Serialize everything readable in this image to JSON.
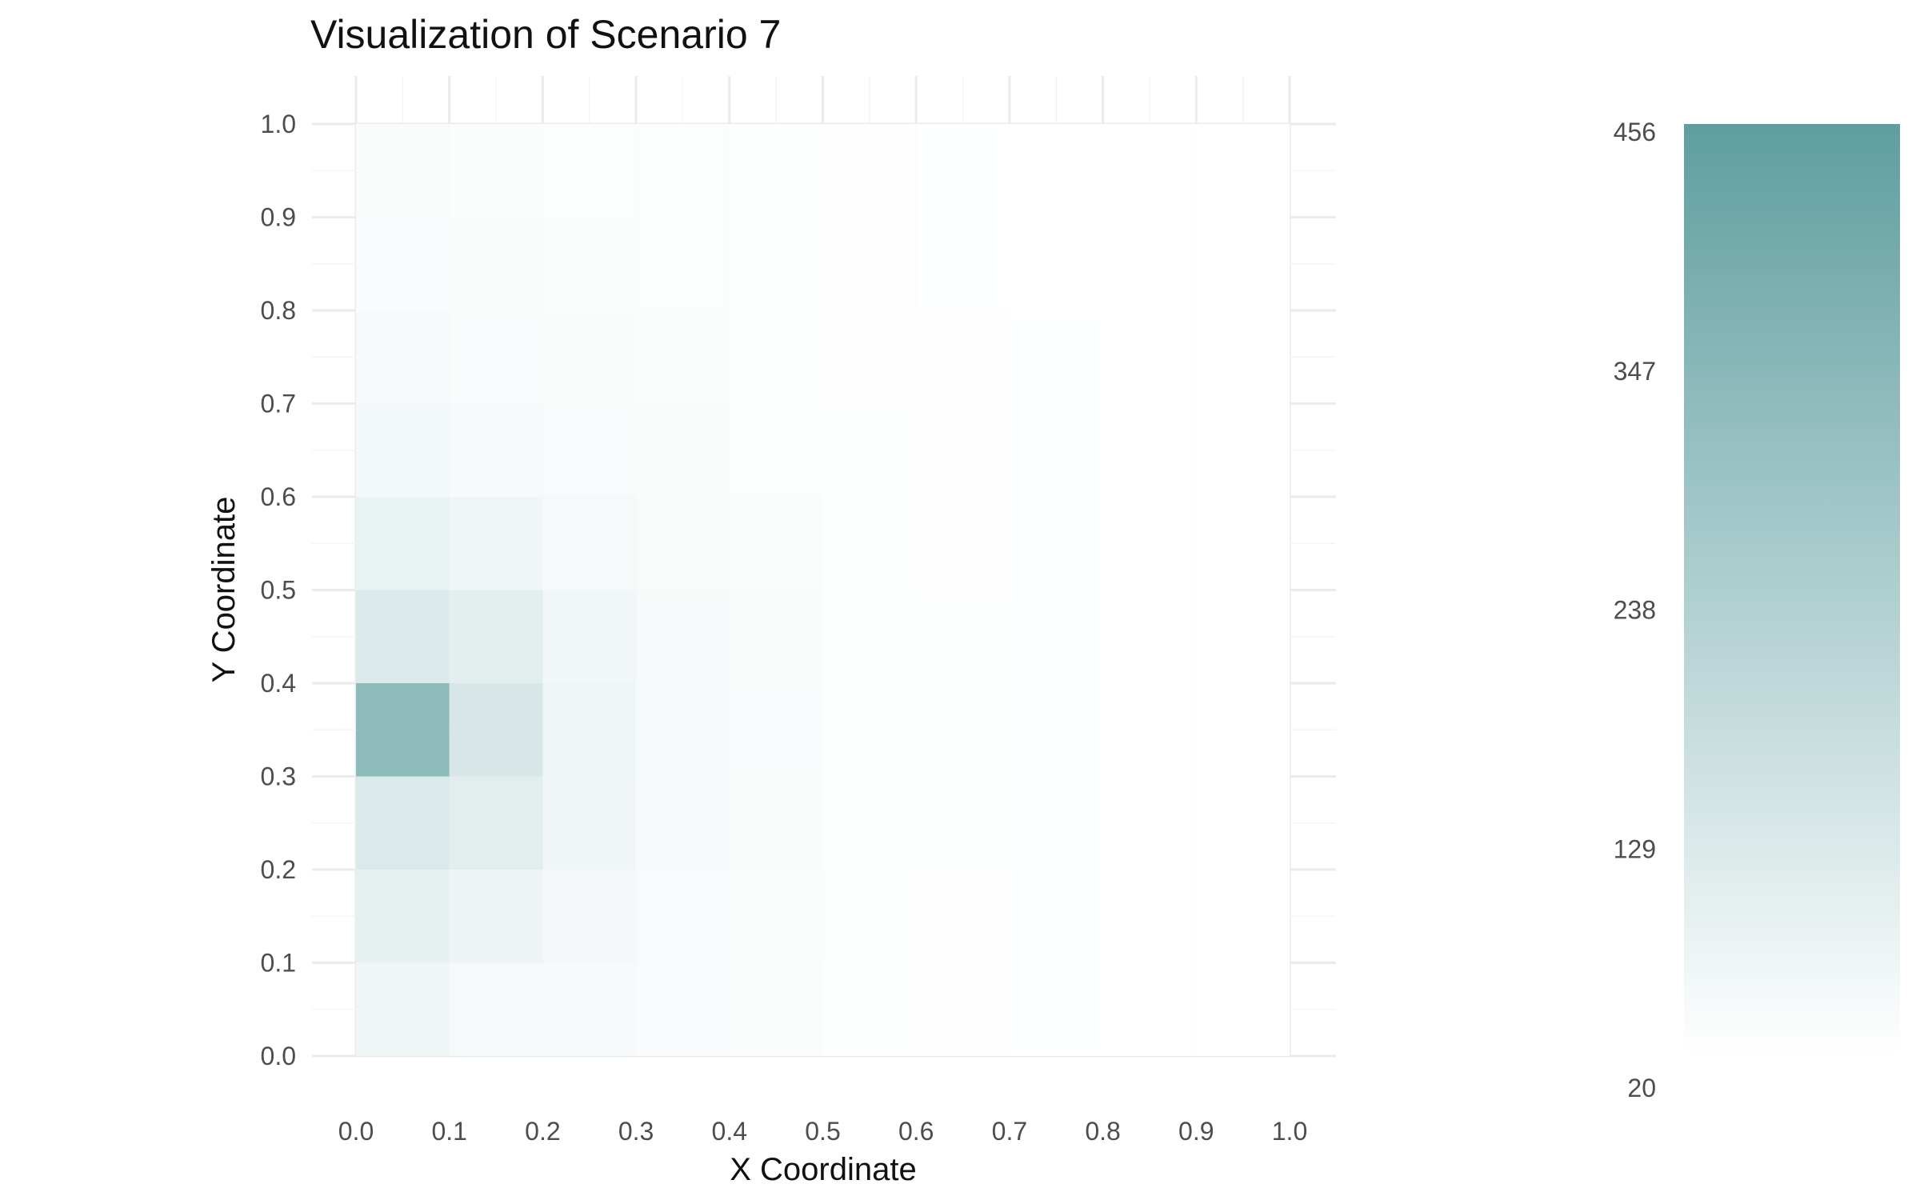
{
  "chart_data": {
    "type": "heatmap",
    "title": "Visualization of Scenario 7",
    "xlabel": "X Coordinate",
    "ylabel": "Y Coordinate",
    "xlim": [
      0,
      1
    ],
    "ylim": [
      0,
      1
    ],
    "x_ticks": [
      "0.0",
      "0.1",
      "0.2",
      "0.3",
      "0.4",
      "0.5",
      "0.6",
      "0.7",
      "0.8",
      "0.9",
      "1.0"
    ],
    "y_ticks": [
      "0.0",
      "0.1",
      "0.2",
      "0.3",
      "0.4",
      "0.5",
      "0.6",
      "0.7",
      "0.8",
      "0.9",
      "1.0"
    ],
    "bin_width": 0.1,
    "x_bins": [
      0.0,
      0.1,
      0.2,
      0.3,
      0.4,
      0.5,
      0.6,
      0.7,
      0.8,
      0.9
    ],
    "y_bins": [
      0.0,
      0.1,
      0.2,
      0.3,
      0.4,
      0.5,
      0.6,
      0.7,
      0.8,
      0.9
    ],
    "values": [
      [
        62,
        48,
        42,
        36,
        30,
        26,
        24,
        22,
        21,
        20
      ],
      [
        88,
        70,
        50,
        38,
        31,
        27,
        24,
        22,
        21,
        20
      ],
      [
        120,
        98,
        60,
        42,
        33,
        28,
        25,
        22,
        21,
        20
      ],
      [
        330,
        128,
        66,
        44,
        35,
        28,
        25,
        22,
        21,
        20
      ],
      [
        118,
        96,
        58,
        42,
        33,
        28,
        25,
        22,
        21,
        20
      ],
      [
        76,
        62,
        46,
        37,
        31,
        26,
        24,
        22,
        21,
        20
      ],
      [
        52,
        44,
        38,
        33,
        28,
        25,
        23,
        22,
        21,
        20
      ],
      [
        42,
        38,
        34,
        30,
        27,
        24,
        23,
        22,
        21,
        20
      ],
      [
        36,
        33,
        30,
        28,
        26,
        24,
        22,
        21,
        20,
        20
      ],
      [
        34,
        32,
        29,
        27,
        25,
        23,
        22,
        21,
        20,
        20
      ]
    ],
    "colorbar": {
      "min": 20,
      "max": 456,
      "ticks": [
        "20",
        "129",
        "238",
        "347",
        "456"
      ],
      "low_color": "#ffffff",
      "high_color": "#5f9ea0"
    },
    "grid": true
  }
}
